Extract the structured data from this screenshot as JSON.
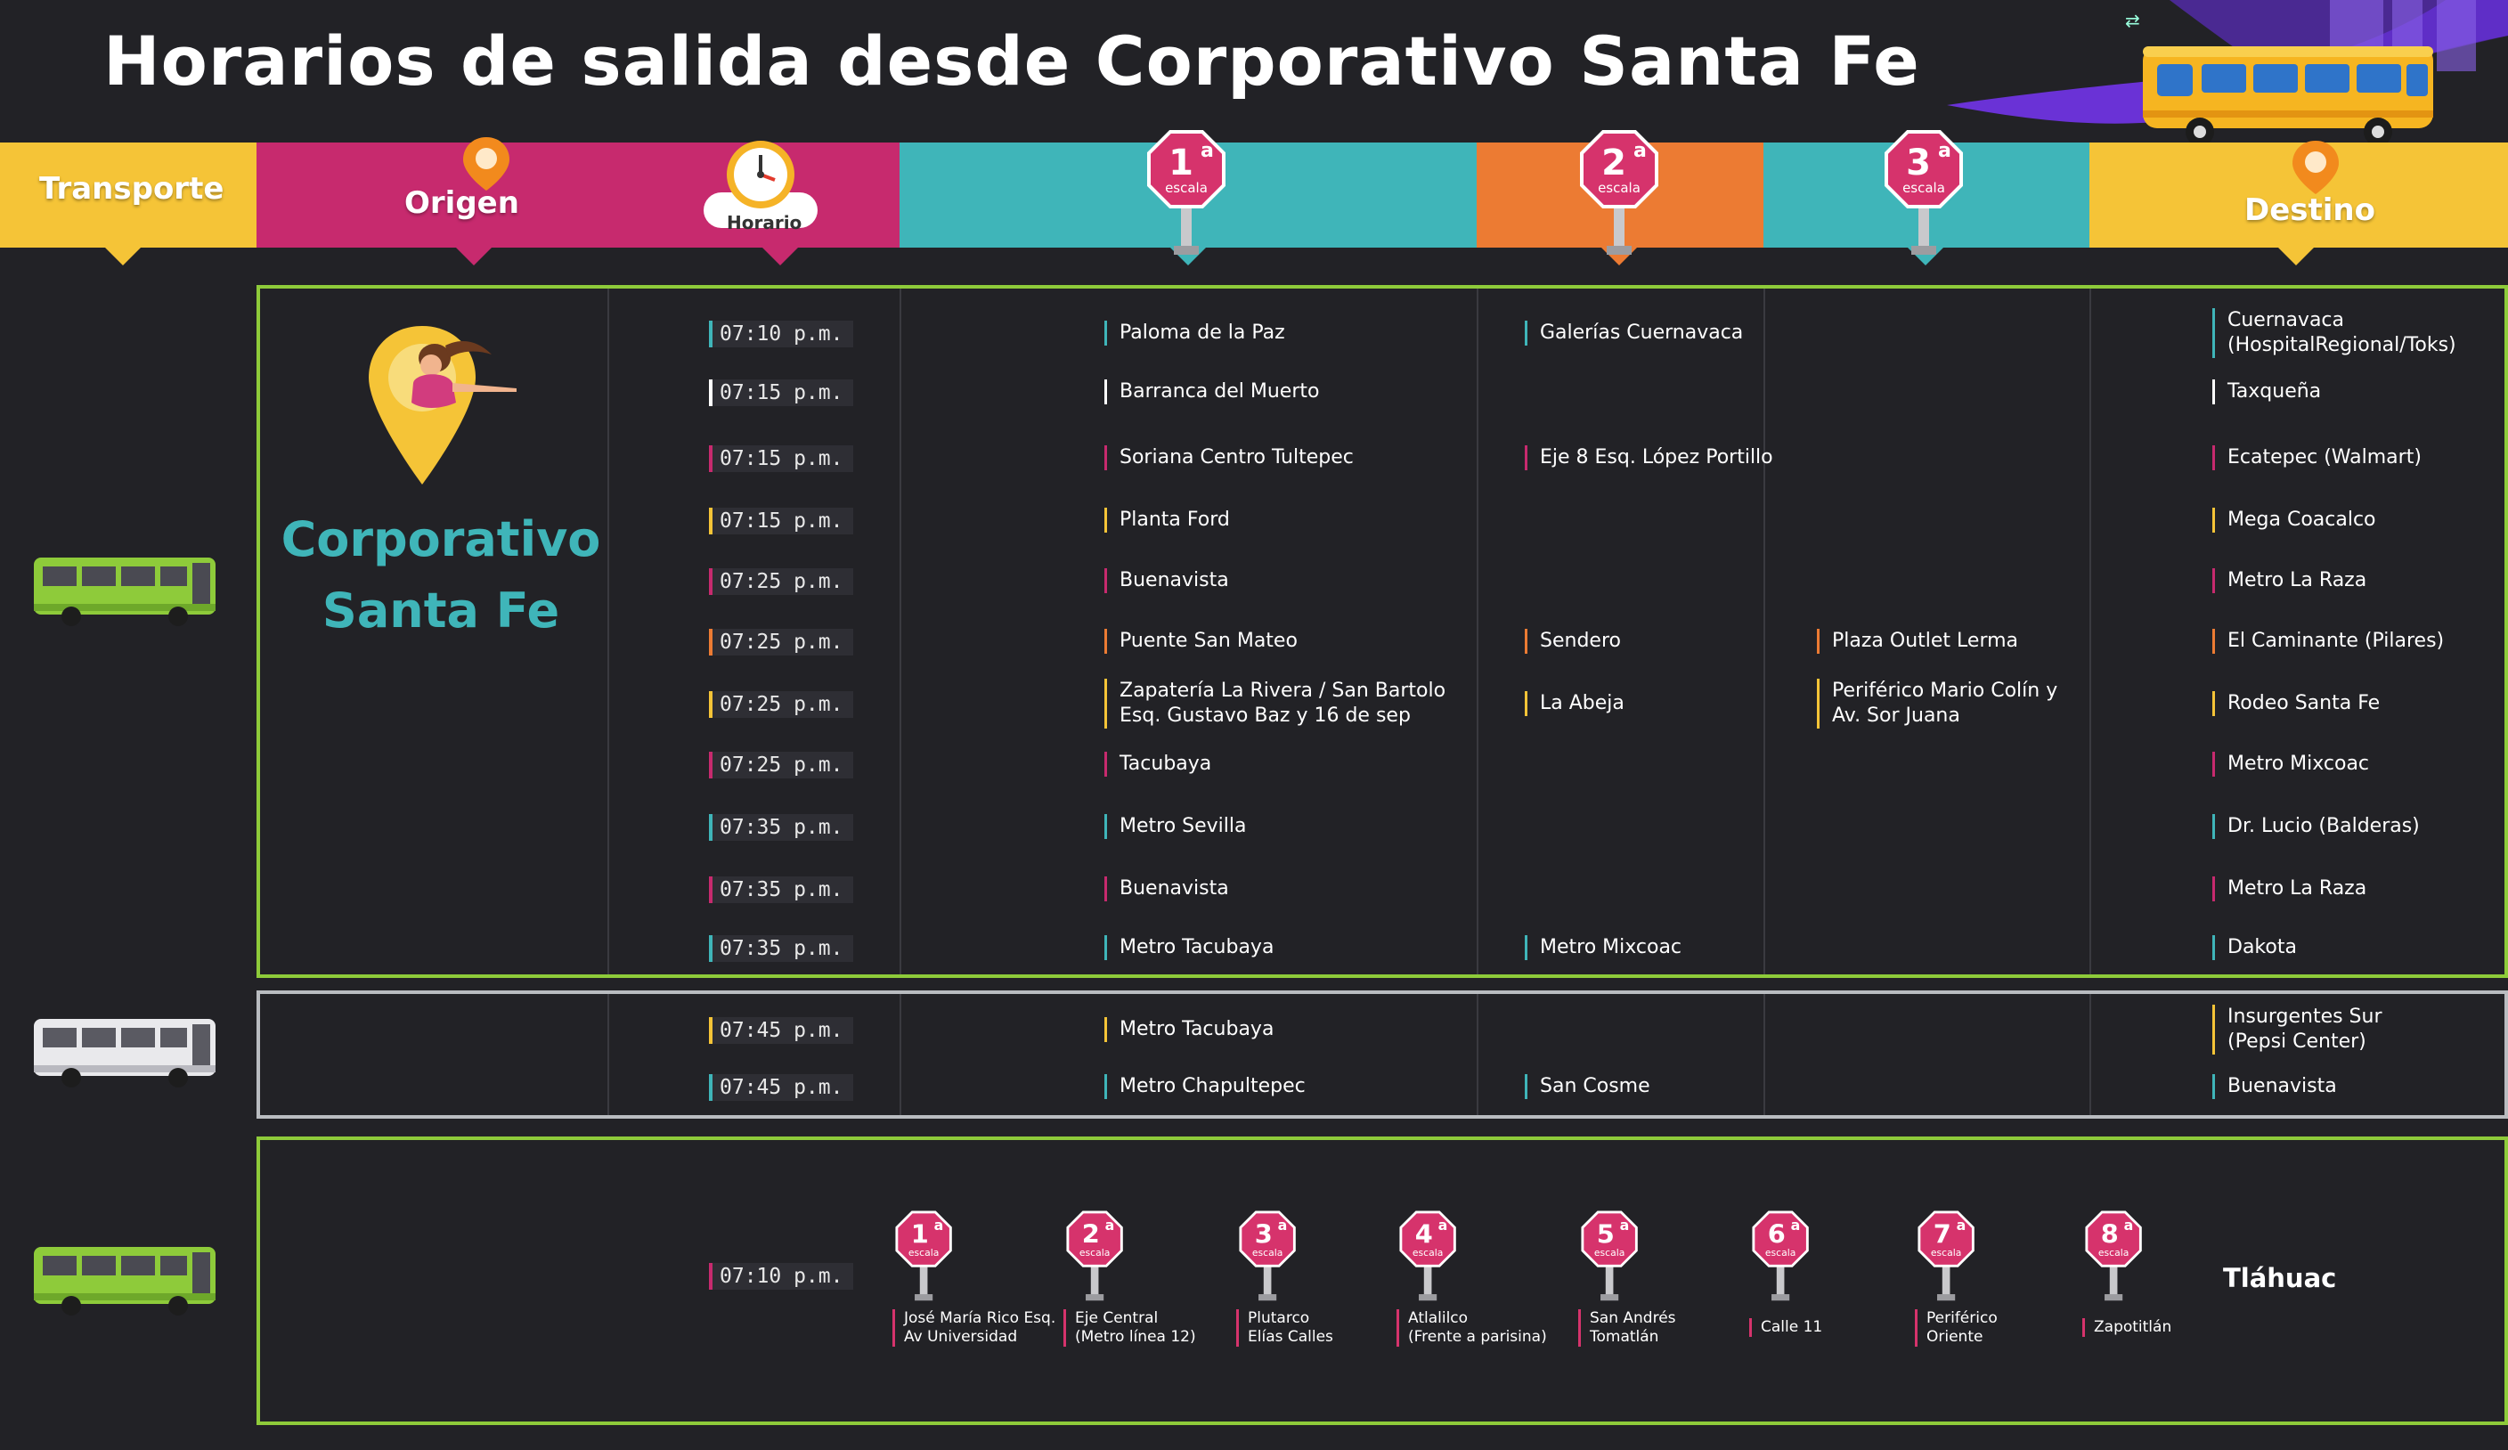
{
  "title": "Horarios de salida desde Corporativo Santa Fe",
  "colors": {
    "background": "#222226",
    "yellow": "#f5c437",
    "magenta": "#c72a6e",
    "teal": "#3fb5b9",
    "orange": "#ec7b33",
    "green_border": "#8ecb3a",
    "gray_border": "#b9bcc0",
    "stop_sign": "#d6336c"
  },
  "header": {
    "transporte": "Transporte",
    "origen": "Origen",
    "horario": "Horario",
    "escala_1": {
      "num": "1",
      "sup": "a",
      "sub": "escala"
    },
    "escala_2": {
      "num": "2",
      "sup": "a",
      "sub": "escala"
    },
    "escala_3": {
      "num": "3",
      "sup": "a",
      "sub": "escala"
    },
    "destino": "Destino"
  },
  "origin": {
    "line1": "Corporativo",
    "line2": "Santa Fe"
  },
  "rows_green": [
    {
      "time": "07:10 p.m.",
      "e1": [
        "Paloma de la Paz"
      ],
      "e2": [
        "Galerías Cuernavaca"
      ],
      "e3": [],
      "dest": [
        "Cuernavaca",
        "(HospitalRegional/Toks)"
      ],
      "accent": "#3fb5b9"
    },
    {
      "time": "07:15 p.m.",
      "e1": [
        "Barranca del Muerto"
      ],
      "e2": [],
      "e3": [],
      "dest": [
        "Taxqueña"
      ],
      "accent": "#ffffff"
    },
    {
      "time": "07:15 p.m.",
      "e1": [
        "Soriana Centro Tultepec"
      ],
      "e2": [
        "Eje 8 Esq. López Portillo"
      ],
      "e3": [],
      "dest": [
        "Ecatepec (Walmart)"
      ],
      "accent": "#c72a6e"
    },
    {
      "time": "07:15 p.m.",
      "e1": [
        "Planta Ford"
      ],
      "e2": [],
      "e3": [],
      "dest": [
        "Mega Coacalco"
      ],
      "accent": "#f5c437"
    },
    {
      "time": "07:25 p.m.",
      "e1": [
        "Buenavista"
      ],
      "e2": [],
      "e3": [],
      "dest": [
        "Metro La Raza"
      ],
      "accent": "#c72a6e"
    },
    {
      "time": "07:25 p.m.",
      "e1": [
        "Puente San Mateo"
      ],
      "e2": [
        "Sendero"
      ],
      "e3": [
        "Plaza Outlet Lerma"
      ],
      "dest": [
        "El Caminante (Pilares)"
      ],
      "accent": "#ec7b33"
    },
    {
      "time": "07:25 p.m.",
      "e1": [
        "Zapatería La Rivera / San Bartolo",
        "Esq. Gustavo Baz y 16 de sep"
      ],
      "e2": [
        "La Abeja"
      ],
      "e3": [
        "Periférico Mario Colín y",
        "Av. Sor Juana"
      ],
      "dest": [
        "Rodeo Santa Fe"
      ],
      "accent": "#f5c437"
    },
    {
      "time": "07:25 p.m.",
      "e1": [
        "Tacubaya"
      ],
      "e2": [],
      "e3": [],
      "dest": [
        "Metro Mixcoac"
      ],
      "accent": "#c72a6e"
    },
    {
      "time": "07:35 p.m.",
      "e1": [
        "Metro Sevilla"
      ],
      "e2": [],
      "e3": [],
      "dest": [
        "Dr. Lucio (Balderas)"
      ],
      "accent": "#3fb5b9"
    },
    {
      "time": "07:35 p.m.",
      "e1": [
        "Buenavista"
      ],
      "e2": [],
      "e3": [],
      "dest": [
        "Metro La Raza"
      ],
      "accent": "#c72a6e"
    },
    {
      "time": "07:35 p.m.",
      "e1": [
        "Metro Tacubaya"
      ],
      "e2": [
        "Metro Mixcoac"
      ],
      "e3": [],
      "dest": [
        "Dakota"
      ],
      "accent": "#3fb5b9"
    }
  ],
  "rows_gray": [
    {
      "time": "07:45 p.m.",
      "e1": [
        "Metro Tacubaya"
      ],
      "e2": [],
      "e3": [],
      "dest": [
        "Insurgentes Sur",
        "(Pepsi Center)"
      ],
      "accent": "#f5c437"
    },
    {
      "time": "07:45 p.m.",
      "e1": [
        "Metro Chapultepec"
      ],
      "e2": [
        "San Cosme"
      ],
      "e3": [],
      "dest": [
        "Buenavista"
      ],
      "accent": "#3fb5b9"
    }
  ],
  "route_bottom": {
    "time": "07:10 p.m.",
    "destination": "Tláhuac",
    "stops": [
      {
        "num": "1",
        "sup": "a",
        "sub": "escala",
        "label": [
          "José María Rico Esq.",
          "Av Universidad"
        ]
      },
      {
        "num": "2",
        "sup": "a",
        "sub": "escala",
        "label": [
          "Eje Central",
          "(Metro línea 12)"
        ]
      },
      {
        "num": "3",
        "sup": "a",
        "sub": "escala",
        "label": [
          "Plutarco",
          "Elías Calles"
        ]
      },
      {
        "num": "4",
        "sup": "a",
        "sub": "escala",
        "label": [
          "Atlalilco",
          "(Frente a parisina)"
        ]
      },
      {
        "num": "5",
        "sup": "a",
        "sub": "escala",
        "label": [
          "San Andrés",
          "Tomatlán"
        ]
      },
      {
        "num": "6",
        "sup": "a",
        "sub": "escala",
        "label": [
          "Calle 11"
        ]
      },
      {
        "num": "7",
        "sup": "a",
        "sub": "escala",
        "label": [
          "Periférico",
          "Oriente"
        ]
      },
      {
        "num": "8",
        "sup": "a",
        "sub": "escala",
        "label": [
          "Zapotitlán"
        ]
      }
    ]
  },
  "icons": [
    "bus-green-icon",
    "bus-white-icon",
    "bus-green-icon",
    "map-pin-icon",
    "clock-icon",
    "stop-sign-icon",
    "woman-pin-illustration",
    "yellow-bus-illustration"
  ]
}
